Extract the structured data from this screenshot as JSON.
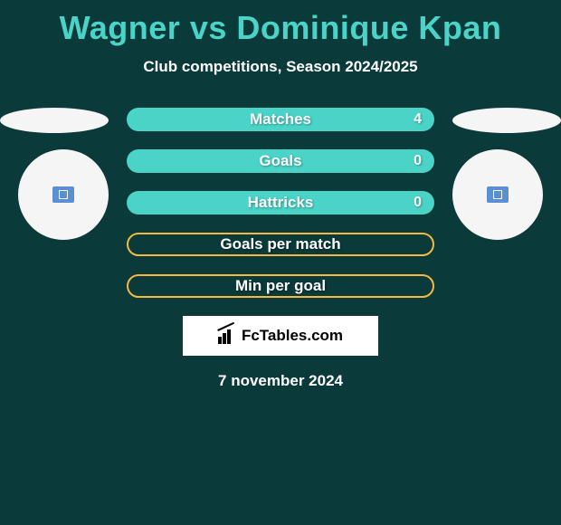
{
  "title": "Wagner vs Dominique Kpan",
  "subtitle": "Club competitions, Season 2024/2025",
  "stats": [
    {
      "label": "Matches",
      "value": "4",
      "style": "filled"
    },
    {
      "label": "Goals",
      "value": "0",
      "style": "filled"
    },
    {
      "label": "Hattricks",
      "value": "0",
      "style": "filled"
    },
    {
      "label": "Goals per match",
      "value": "",
      "style": "outline"
    },
    {
      "label": "Min per goal",
      "value": "",
      "style": "outline"
    }
  ],
  "logo_text": "FcTables.com",
  "date": "7 november 2024",
  "colors": {
    "background": "#0a3a3a",
    "accent": "#4ad4c8",
    "outline": "#f4b942",
    "avatar_bg": "#f5f5f5",
    "avatar_icon": "#5a8fd4",
    "text_light": "#ffffff",
    "logo_bg": "#ffffff"
  }
}
